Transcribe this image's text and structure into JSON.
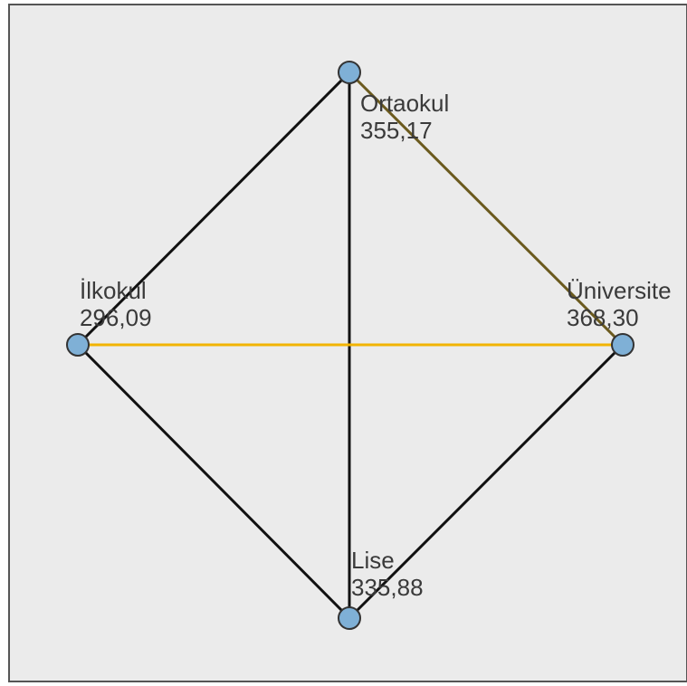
{
  "diagram": {
    "nodes": [
      {
        "id": "ortaokul",
        "name": "Ortaokul",
        "value": "355,17"
      },
      {
        "id": "ilkokul",
        "name": "İlkokul",
        "value": "296,09"
      },
      {
        "id": "universite",
        "name": "Üniversite",
        "value": "368,30"
      },
      {
        "id": "lise",
        "name": "Lise",
        "value": "335,88"
      }
    ],
    "edges": [
      {
        "from": "ortaokul",
        "to": "ilkokul",
        "color": "#111111"
      },
      {
        "from": "ortaokul",
        "to": "universite",
        "color": "#6b5a1e"
      },
      {
        "from": "ortaokul",
        "to": "lise",
        "color": "#111111"
      },
      {
        "from": "ilkokul",
        "to": "lise",
        "color": "#111111"
      },
      {
        "from": "universite",
        "to": "lise",
        "color": "#111111"
      },
      {
        "from": "ilkokul",
        "to": "universite",
        "color": "#f2b400"
      }
    ],
    "colors": {
      "background": "#ebebeb",
      "frame": "#555555",
      "node_fill": "#7fb0d6",
      "node_stroke": "#333333",
      "label": "#3a3a3a"
    }
  }
}
